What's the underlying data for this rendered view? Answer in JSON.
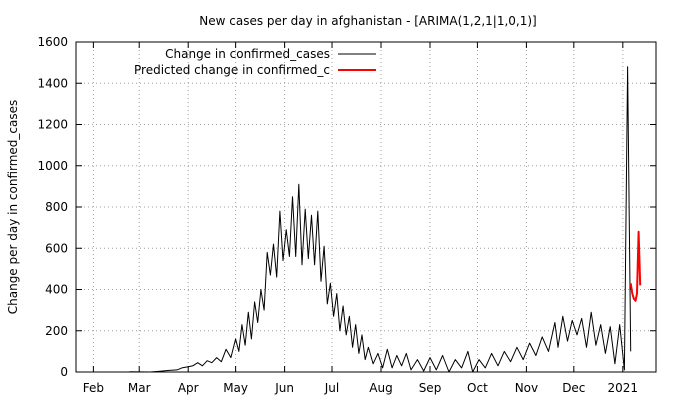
{
  "chart_data": {
    "type": "line",
    "title": "New cases per day in afghanistan -  [ARIMA(1,2,1|1,0,1)]",
    "xlabel": "",
    "ylabel": "Change per day in confirmed_cases",
    "ylim": [
      0,
      1600
    ],
    "yticks": [
      0,
      200,
      400,
      600,
      800,
      1000,
      1200,
      1400,
      1600
    ],
    "xlim": [
      "2020-01-21",
      "2021-01-22"
    ],
    "xticks": [
      {
        "date": "2020-02-01",
        "label": "Feb"
      },
      {
        "date": "2020-03-01",
        "label": "Mar"
      },
      {
        "date": "2020-04-01",
        "label": "Apr"
      },
      {
        "date": "2020-05-01",
        "label": "May"
      },
      {
        "date": "2020-06-01",
        "label": "Jun"
      },
      {
        "date": "2020-07-01",
        "label": "Jul"
      },
      {
        "date": "2020-08-01",
        "label": "Aug"
      },
      {
        "date": "2020-09-01",
        "label": "Sep"
      },
      {
        "date": "2020-10-01",
        "label": "Oct"
      },
      {
        "date": "2020-11-01",
        "label": "Nov"
      },
      {
        "date": "2020-12-01",
        "label": "Dec"
      },
      {
        "date": "2021-01-01",
        "label": "2021"
      }
    ],
    "grid": true,
    "legend_position": "top-left",
    "series": [
      {
        "name": "Change in confirmed_cases",
        "color": "#000000",
        "points": [
          [
            "2020-02-24",
            1
          ],
          [
            "2020-03-08",
            0
          ],
          [
            "2020-03-14",
            4
          ],
          [
            "2020-03-20",
            8
          ],
          [
            "2020-03-25",
            10
          ],
          [
            "2020-03-28",
            20
          ],
          [
            "2020-04-01",
            25
          ],
          [
            "2020-04-04",
            30
          ],
          [
            "2020-04-07",
            45
          ],
          [
            "2020-04-10",
            30
          ],
          [
            "2020-04-13",
            55
          ],
          [
            "2020-04-16",
            45
          ],
          [
            "2020-04-19",
            70
          ],
          [
            "2020-04-22",
            50
          ],
          [
            "2020-04-25",
            110
          ],
          [
            "2020-04-28",
            70
          ],
          [
            "2020-05-01",
            160
          ],
          [
            "2020-05-03",
            100
          ],
          [
            "2020-05-05",
            230
          ],
          [
            "2020-05-07",
            130
          ],
          [
            "2020-05-09",
            290
          ],
          [
            "2020-05-11",
            160
          ],
          [
            "2020-05-13",
            340
          ],
          [
            "2020-05-15",
            240
          ],
          [
            "2020-05-17",
            400
          ],
          [
            "2020-05-19",
            300
          ],
          [
            "2020-05-21",
            580
          ],
          [
            "2020-05-23",
            470
          ],
          [
            "2020-05-25",
            620
          ],
          [
            "2020-05-27",
            460
          ],
          [
            "2020-05-29",
            780
          ],
          [
            "2020-05-31",
            540
          ],
          [
            "2020-06-02",
            690
          ],
          [
            "2020-06-04",
            560
          ],
          [
            "2020-06-06",
            850
          ],
          [
            "2020-06-08",
            560
          ],
          [
            "2020-06-10",
            910
          ],
          [
            "2020-06-12",
            520
          ],
          [
            "2020-06-14",
            790
          ],
          [
            "2020-06-16",
            550
          ],
          [
            "2020-06-18",
            760
          ],
          [
            "2020-06-20",
            520
          ],
          [
            "2020-06-22",
            780
          ],
          [
            "2020-06-24",
            440
          ],
          [
            "2020-06-26",
            610
          ],
          [
            "2020-06-28",
            330
          ],
          [
            "2020-06-30",
            430
          ],
          [
            "2020-07-02",
            270
          ],
          [
            "2020-07-04",
            380
          ],
          [
            "2020-07-06",
            200
          ],
          [
            "2020-07-08",
            320
          ],
          [
            "2020-07-10",
            180
          ],
          [
            "2020-07-12",
            270
          ],
          [
            "2020-07-14",
            120
          ],
          [
            "2020-07-16",
            230
          ],
          [
            "2020-07-18",
            90
          ],
          [
            "2020-07-20",
            180
          ],
          [
            "2020-07-22",
            60
          ],
          [
            "2020-07-24",
            120
          ],
          [
            "2020-07-27",
            40
          ],
          [
            "2020-07-30",
            90
          ],
          [
            "2020-08-02",
            20
          ],
          [
            "2020-08-05",
            110
          ],
          [
            "2020-08-08",
            20
          ],
          [
            "2020-08-11",
            80
          ],
          [
            "2020-08-14",
            30
          ],
          [
            "2020-08-17",
            90
          ],
          [
            "2020-08-20",
            10
          ],
          [
            "2020-08-24",
            60
          ],
          [
            "2020-08-28",
            5
          ],
          [
            "2020-09-01",
            70
          ],
          [
            "2020-09-05",
            10
          ],
          [
            "2020-09-09",
            80
          ],
          [
            "2020-09-13",
            0
          ],
          [
            "2020-09-17",
            60
          ],
          [
            "2020-09-21",
            20
          ],
          [
            "2020-09-25",
            100
          ],
          [
            "2020-09-28",
            0
          ],
          [
            "2020-10-02",
            60
          ],
          [
            "2020-10-06",
            20
          ],
          [
            "2020-10-10",
            90
          ],
          [
            "2020-10-14",
            30
          ],
          [
            "2020-10-18",
            100
          ],
          [
            "2020-10-22",
            50
          ],
          [
            "2020-10-26",
            120
          ],
          [
            "2020-10-30",
            60
          ],
          [
            "2020-11-03",
            140
          ],
          [
            "2020-11-07",
            80
          ],
          [
            "2020-11-11",
            170
          ],
          [
            "2020-11-15",
            100
          ],
          [
            "2020-11-19",
            240
          ],
          [
            "2020-11-21",
            120
          ],
          [
            "2020-11-24",
            270
          ],
          [
            "2020-11-27",
            150
          ],
          [
            "2020-11-30",
            250
          ],
          [
            "2020-12-03",
            180
          ],
          [
            "2020-12-06",
            260
          ],
          [
            "2020-12-09",
            120
          ],
          [
            "2020-12-12",
            290
          ],
          [
            "2020-12-15",
            130
          ],
          [
            "2020-12-18",
            230
          ],
          [
            "2020-12-21",
            90
          ],
          [
            "2020-12-24",
            220
          ],
          [
            "2020-12-27",
            40
          ],
          [
            "2020-12-30",
            230
          ],
          [
            "2021-01-02",
            10
          ],
          [
            "2021-01-04",
            1480
          ],
          [
            "2021-01-06",
            100
          ]
        ]
      },
      {
        "name": "Predicted change in confirmed_c",
        "color": "#ff0000",
        "points": [
          [
            "2021-01-06",
            430
          ],
          [
            "2021-01-07",
            380
          ],
          [
            "2021-01-08",
            355
          ],
          [
            "2021-01-09",
            345
          ],
          [
            "2021-01-10",
            380
          ],
          [
            "2021-01-11",
            680
          ],
          [
            "2021-01-12",
            420
          ]
        ]
      }
    ]
  }
}
